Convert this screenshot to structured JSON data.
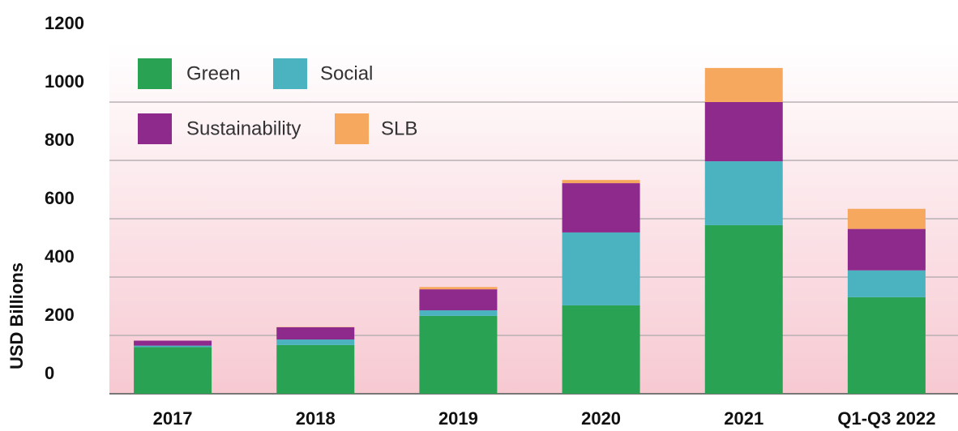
{
  "chart_data": {
    "type": "stacked_bar",
    "y_axis_label": "USD Billions",
    "categories": [
      "2017",
      "2018",
      "2019",
      "2020",
      "2021",
      "Q1-Q3 2022"
    ],
    "series": [
      {
        "name": "Green",
        "color": "#2aa254",
        "values": [
          160,
          167,
          267,
          303,
          578,
          331
        ]
      },
      {
        "name": "Social",
        "color": "#4bb3c0",
        "values": [
          5,
          19,
          19,
          250,
          219,
          92
        ]
      },
      {
        "name": "Sustainability",
        "color": "#8e2a8b",
        "values": [
          17,
          42,
          72,
          169,
          203,
          142
        ]
      },
      {
        "name": "SLB",
        "color": "#f6a85f",
        "values": [
          0,
          1,
          8,
          11,
          117,
          69
        ]
      }
    ],
    "ylim": [
      0,
      1200
    ],
    "yticks": [
      0,
      200,
      400,
      600,
      800,
      1000,
      1200
    ],
    "grid": true,
    "legend": "upper left"
  }
}
